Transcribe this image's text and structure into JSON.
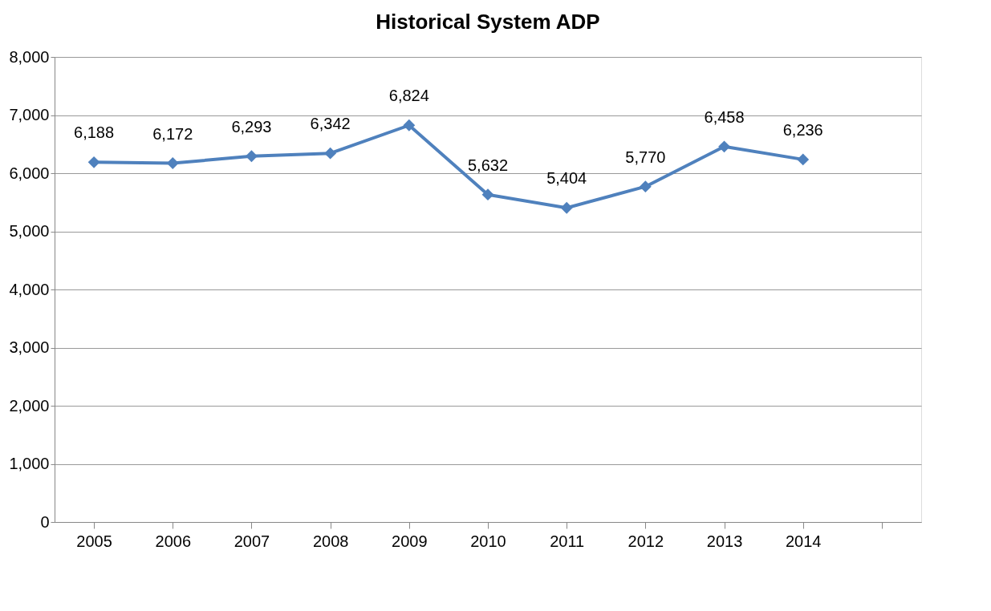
{
  "chart_data": {
    "type": "line",
    "title": "Historical System ADP",
    "categories": [
      "2005",
      "2006",
      "2007",
      "2008",
      "2009",
      "2010",
      "2011",
      "2012",
      "2013",
      "2014",
      null
    ],
    "series": [
      {
        "color": "#4f81bd",
        "values": [
          6188,
          6172,
          6293,
          6342,
          6824,
          5632,
          5404,
          5770,
          6458,
          6236,
          null
        ],
        "value_labels": [
          "6,188",
          "6,172",
          "6,293",
          "6,342",
          "6,824",
          "5,632",
          "5,404",
          "5,770",
          "6,458",
          "6,236",
          null
        ]
      }
    ],
    "ylim": [
      0,
      8000
    ],
    "yticks": [
      {
        "value": 0,
        "label": "0"
      },
      {
        "value": 1000,
        "label": "1,000"
      },
      {
        "value": 2000,
        "label": "2,000"
      },
      {
        "value": 3000,
        "label": "3,000"
      },
      {
        "value": 4000,
        "label": "4,000"
      },
      {
        "value": 5000,
        "label": "5,000"
      },
      {
        "value": 6000,
        "label": "6,000"
      },
      {
        "value": 7000,
        "label": "7,000"
      },
      {
        "value": 8000,
        "label": "8,000"
      }
    ],
    "grid": "y",
    "marker": "diamond",
    "line_style": "solid"
  }
}
